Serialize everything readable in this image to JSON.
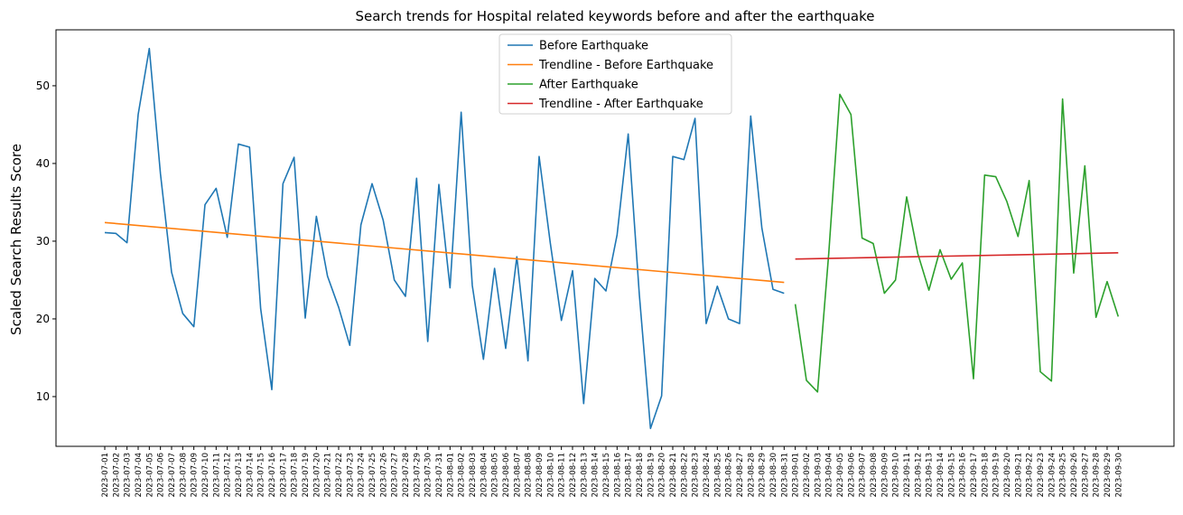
{
  "chart_data": {
    "type": "line",
    "title": "Search trends for Hospital related keywords before and after the earthquake",
    "xlabel": "",
    "ylabel": "Scaled Search Results Score",
    "ylim": [
      3.6,
      57.2
    ],
    "yticks": [
      10,
      20,
      30,
      40,
      50
    ],
    "grid": false,
    "legend_position": "top-center",
    "x": [
      "2023-07-01",
      "2023-07-02",
      "2023-07-03",
      "2023-07-04",
      "2023-07-05",
      "2023-07-06",
      "2023-07-07",
      "2023-07-08",
      "2023-07-09",
      "2023-07-10",
      "2023-07-11",
      "2023-07-12",
      "2023-07-13",
      "2023-07-14",
      "2023-07-15",
      "2023-07-16",
      "2023-07-17",
      "2023-07-18",
      "2023-07-19",
      "2023-07-20",
      "2023-07-21",
      "2023-07-22",
      "2023-07-23",
      "2023-07-24",
      "2023-07-25",
      "2023-07-26",
      "2023-07-27",
      "2023-07-28",
      "2023-07-29",
      "2023-07-30",
      "2023-07-31",
      "2023-08-01",
      "2023-08-02",
      "2023-08-03",
      "2023-08-04",
      "2023-08-05",
      "2023-08-06",
      "2023-08-07",
      "2023-08-08",
      "2023-08-09",
      "2023-08-10",
      "2023-08-11",
      "2023-08-12",
      "2023-08-13",
      "2023-08-14",
      "2023-08-15",
      "2023-08-16",
      "2023-08-17",
      "2023-08-18",
      "2023-08-19",
      "2023-08-20",
      "2023-08-21",
      "2023-08-22",
      "2023-08-23",
      "2023-08-24",
      "2023-08-25",
      "2023-08-26",
      "2023-08-27",
      "2023-08-28",
      "2023-08-29",
      "2023-08-30",
      "2023-08-31",
      "2023-09-01",
      "2023-09-02",
      "2023-09-03",
      "2023-09-04",
      "2023-09-05",
      "2023-09-06",
      "2023-09-07",
      "2023-09-08",
      "2023-09-09",
      "2023-09-10",
      "2023-09-11",
      "2023-09-12",
      "2023-09-13",
      "2023-09-14",
      "2023-09-15",
      "2023-09-16",
      "2023-09-17",
      "2023-09-18",
      "2023-09-19",
      "2023-09-20",
      "2023-09-21",
      "2023-09-22",
      "2023-09-23",
      "2023-09-24",
      "2023-09-25",
      "2023-09-26",
      "2023-09-27",
      "2023-09-28",
      "2023-09-29",
      "2023-09-30"
    ],
    "series": [
      {
        "name": "Before Earthquake",
        "color": "#1f77b4",
        "x": [
          "2023-07-01",
          "2023-07-02",
          "2023-07-03",
          "2023-07-04",
          "2023-07-05",
          "2023-07-06",
          "2023-07-07",
          "2023-07-08",
          "2023-07-09",
          "2023-07-10",
          "2023-07-11",
          "2023-07-12",
          "2023-07-13",
          "2023-07-14",
          "2023-07-15",
          "2023-07-16",
          "2023-07-17",
          "2023-07-18",
          "2023-07-19",
          "2023-07-20",
          "2023-07-21",
          "2023-07-22",
          "2023-07-23",
          "2023-07-24",
          "2023-07-25",
          "2023-07-26",
          "2023-07-27",
          "2023-07-28",
          "2023-07-29",
          "2023-07-30",
          "2023-07-31",
          "2023-08-01",
          "2023-08-02",
          "2023-08-03",
          "2023-08-04",
          "2023-08-05",
          "2023-08-06",
          "2023-08-07",
          "2023-08-08",
          "2023-08-09",
          "2023-08-10",
          "2023-08-11",
          "2023-08-12",
          "2023-08-13",
          "2023-08-14",
          "2023-08-15",
          "2023-08-16",
          "2023-08-17",
          "2023-08-18",
          "2023-08-19",
          "2023-08-20",
          "2023-08-21",
          "2023-08-22",
          "2023-08-23",
          "2023-08-24",
          "2023-08-25",
          "2023-08-26",
          "2023-08-27",
          "2023-08-28",
          "2023-08-29",
          "2023-08-30",
          "2023-08-31"
        ],
        "values": [
          31.1,
          31.0,
          29.8,
          46.3,
          54.8,
          38.7,
          26.0,
          20.7,
          19.0,
          34.7,
          36.8,
          30.5,
          42.5,
          42.1,
          21.3,
          10.9,
          37.4,
          40.8,
          20.1,
          33.2,
          25.5,
          21.5,
          16.6,
          32.1,
          37.4,
          32.7,
          25.0,
          22.9,
          38.1,
          17.1,
          37.3,
          24.0,
          46.6,
          24.3,
          14.8,
          26.5,
          16.2,
          28.0,
          14.6,
          40.9,
          29.8,
          19.8,
          26.2,
          9.1,
          25.2,
          23.6,
          30.8,
          43.8,
          23.1,
          5.9,
          10.1,
          40.9,
          40.5,
          45.8,
          19.4,
          24.2,
          20.0,
          19.4,
          46.1,
          31.7,
          23.8,
          23.3
        ]
      },
      {
        "name": "Trendline - Before Earthquake",
        "color": "#ff7f0e",
        "x": [
          "2023-07-01",
          "2023-08-31"
        ],
        "values": [
          32.4,
          24.7
        ]
      },
      {
        "name": "After Earthquake",
        "color": "#2ca02c",
        "x": [
          "2023-09-01",
          "2023-09-02",
          "2023-09-03",
          "2023-09-04",
          "2023-09-05",
          "2023-09-06",
          "2023-09-07",
          "2023-09-08",
          "2023-09-09",
          "2023-09-10",
          "2023-09-11",
          "2023-09-12",
          "2023-09-13",
          "2023-09-14",
          "2023-09-15",
          "2023-09-16",
          "2023-09-17",
          "2023-09-18",
          "2023-09-19",
          "2023-09-20",
          "2023-09-21",
          "2023-09-22",
          "2023-09-23",
          "2023-09-24",
          "2023-09-25",
          "2023-09-26",
          "2023-09-27",
          "2023-09-28",
          "2023-09-29",
          "2023-09-30"
        ],
        "values": [
          21.9,
          12.1,
          10.6,
          28.3,
          48.9,
          46.3,
          30.4,
          29.7,
          23.3,
          25.0,
          35.7,
          28.4,
          23.7,
          28.9,
          25.1,
          27.2,
          12.3,
          38.5,
          38.3,
          35.1,
          30.6,
          37.8,
          13.2,
          12.0,
          48.3,
          25.9,
          39.7,
          20.2,
          24.8,
          20.3
        ]
      },
      {
        "name": "Trendline - After Earthquake",
        "color": "#d62728",
        "x": [
          "2023-09-01",
          "2023-09-30"
        ],
        "values": [
          27.7,
          28.5
        ]
      }
    ]
  }
}
